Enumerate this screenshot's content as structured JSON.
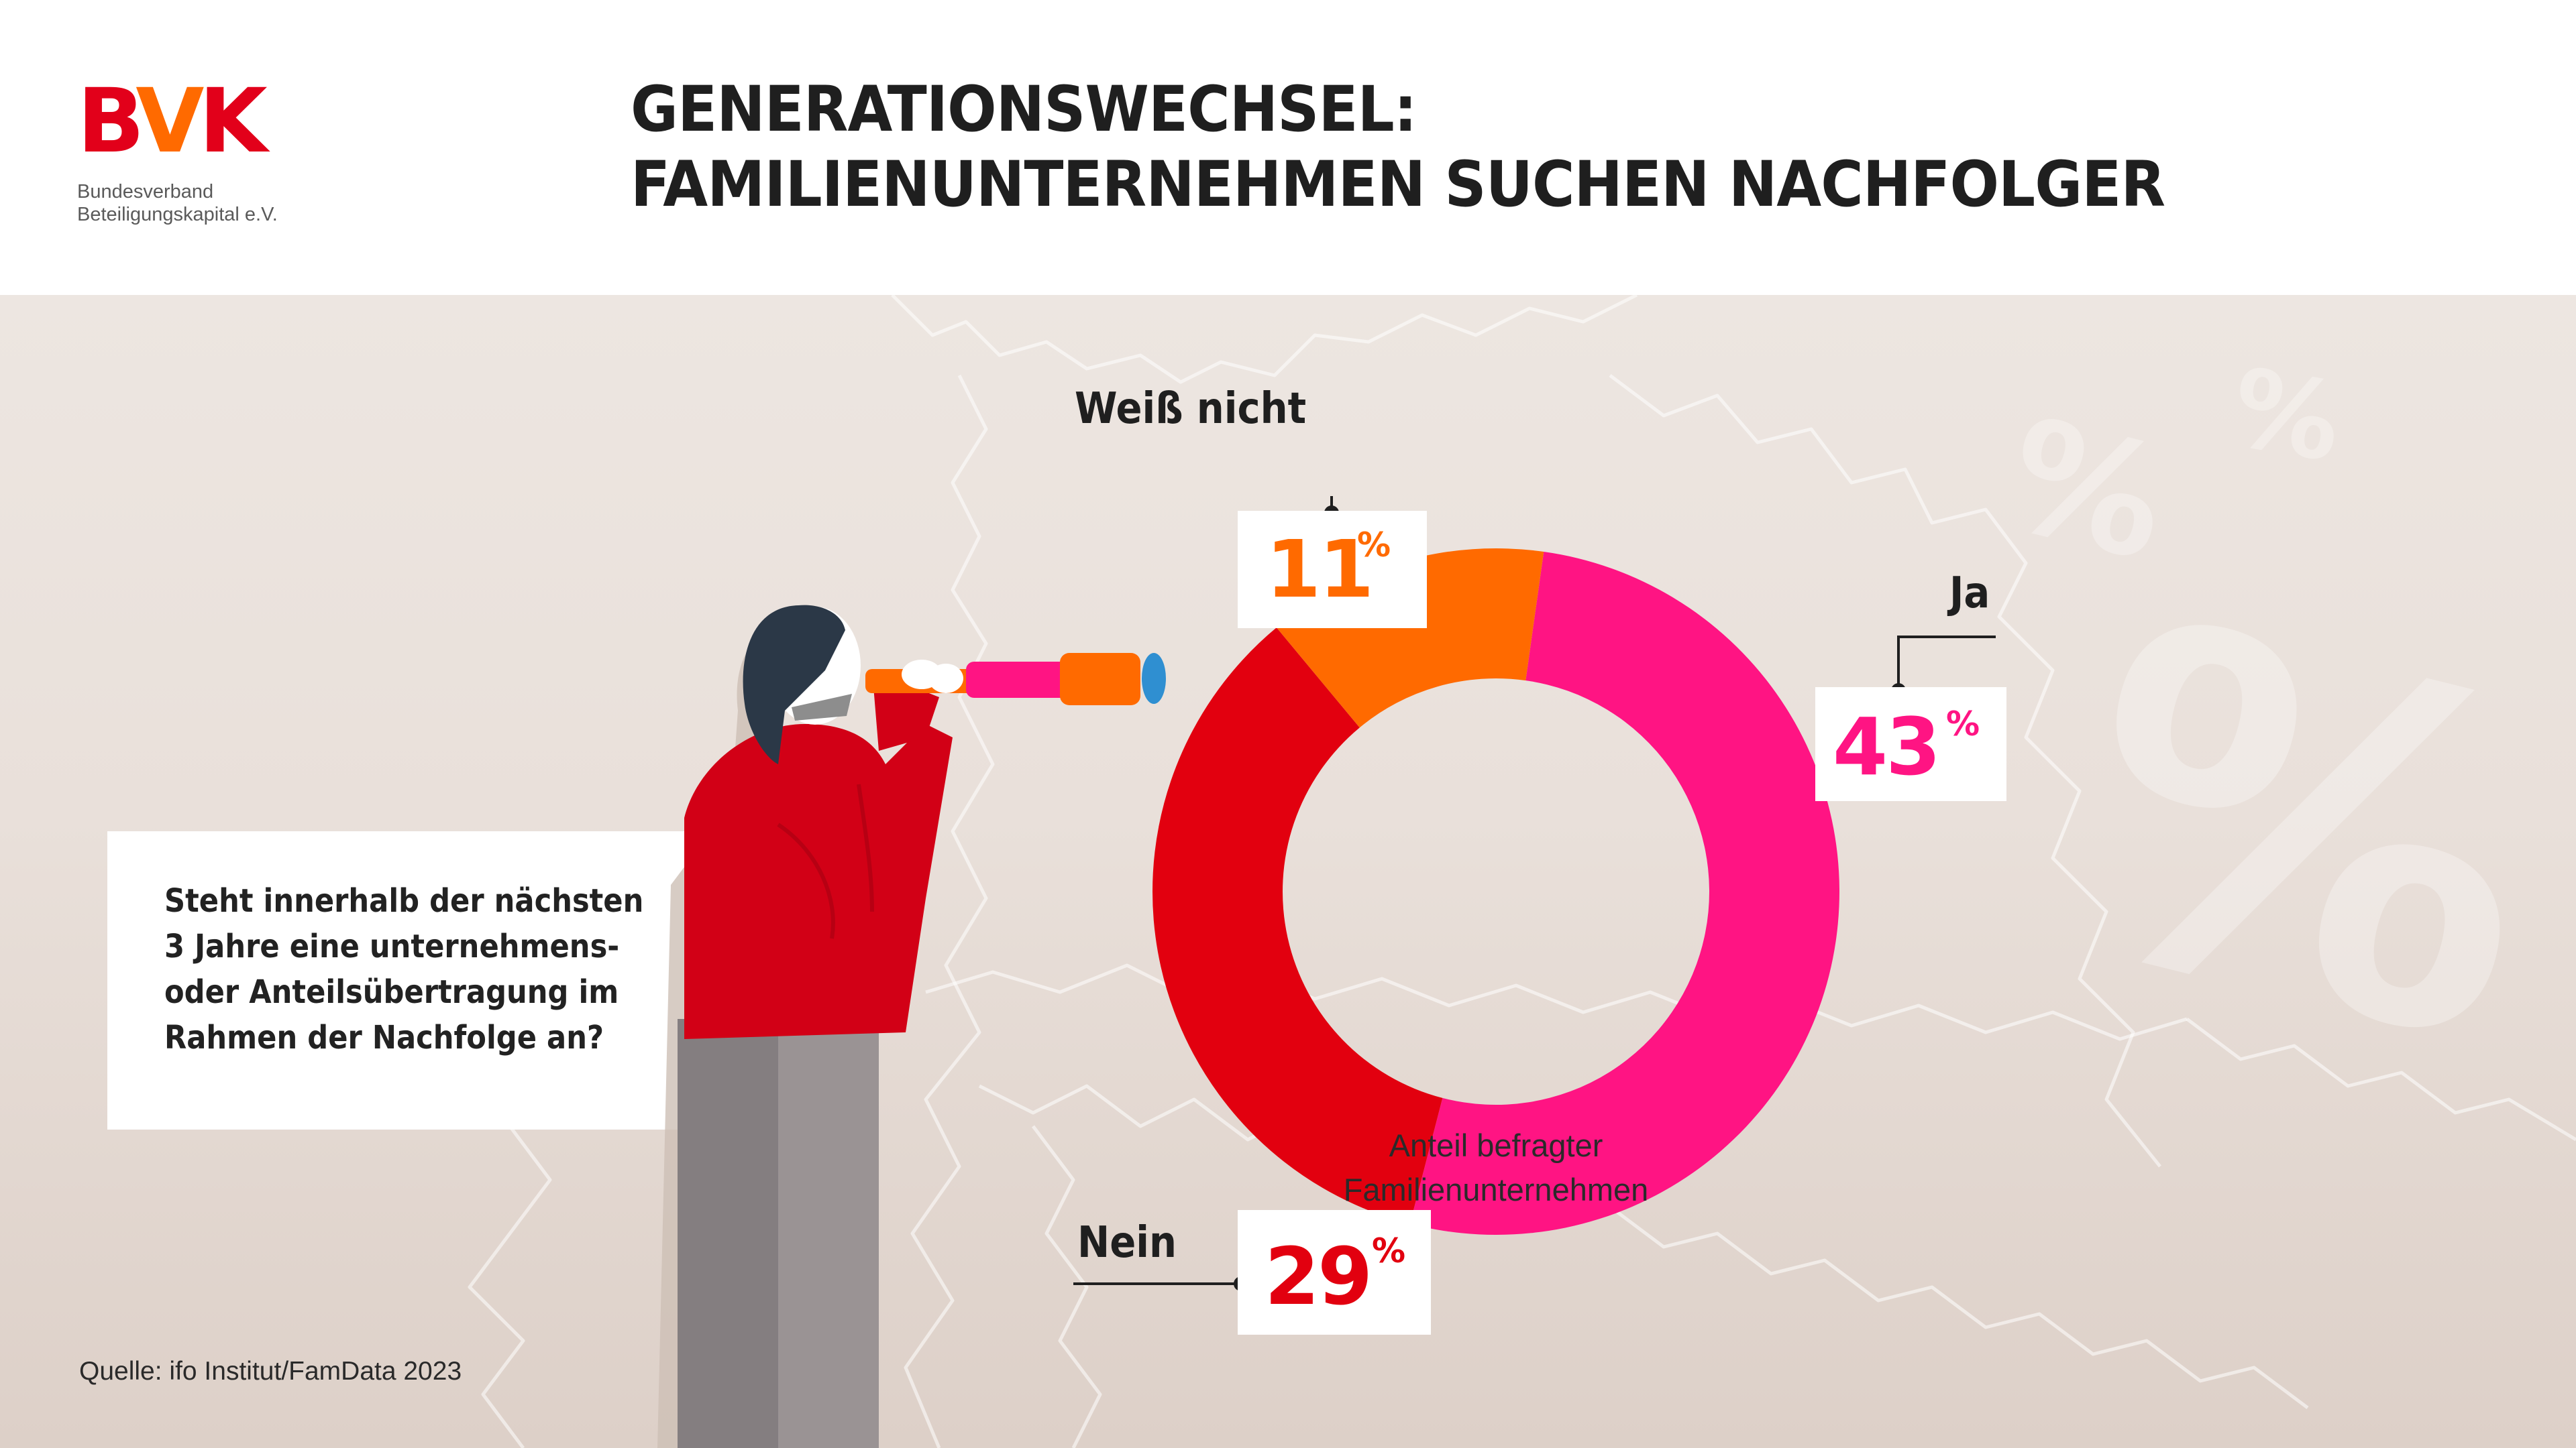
{
  "logo": {
    "mark_b": "B",
    "mark_v": "V",
    "mark_k": "K",
    "line1": "Bundesverband",
    "line2": "Beteiligungskapital e.V."
  },
  "title": {
    "line1": "GENERATIONSWECHSEL:",
    "line2": "FAMILIENUNTERNEHMEN SUCHEN NACHFOLGER"
  },
  "question": {
    "line1": "Steht innerhalb der nächsten",
    "line2": "3 Jahre eine unternehmens-",
    "line3": "oder Anteilsübertragung im",
    "line4": "Rahmen der Nachfolge an?"
  },
  "center_label": {
    "line1": "Anteil befragter",
    "line2": "Familienunternehmen"
  },
  "decor": {
    "percent_glyph": "%"
  },
  "source": "Quelle: ifo Institut/FamData 2023",
  "colors": {
    "ja": "#ff1483",
    "nein": "#e2000f",
    "weiss_nicht": "#ff6a00",
    "title": "#1f1f1f",
    "brand_red": "#e2001a"
  },
  "chart_data": {
    "type": "pie",
    "variant": "donut",
    "title": "",
    "center_text": "Anteil befragter Familienunternehmen",
    "unit": "%",
    "slices": [
      {
        "label": "Ja",
        "value": 43,
        "value_text": "43",
        "color": "#ff1483"
      },
      {
        "label": "Nein",
        "value": 29,
        "value_text": "29",
        "color": "#e2000f"
      },
      {
        "label": "Weiß nicht",
        "value": 11,
        "value_text": "11",
        "color": "#ff6a00"
      }
    ]
  }
}
